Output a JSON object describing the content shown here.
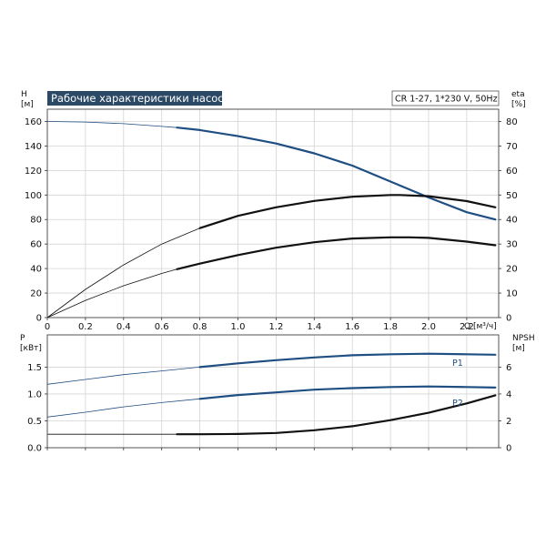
{
  "chart_data": [
    {
      "type": "line",
      "title": "Рабочие характеристики насоса",
      "subtitle": "CR 1-27, 1*230 V, 50Hz",
      "xlabel": "Q [м³/ч]",
      "ylabel": "H\n[м]",
      "y2label": "eta\n[%]",
      "xlim": [
        0,
        2.4
      ],
      "ylim": [
        0,
        170
      ],
      "y2lim": [
        0,
        85
      ],
      "grid": true,
      "x_ticks": [
        "0",
        "0.2",
        "0.4",
        "0.6",
        "0.8",
        "1.0",
        "1.2",
        "1.4",
        "1.6",
        "1.8",
        "2.0",
        "2.2"
      ],
      "y_ticks": [
        "0",
        "20",
        "40",
        "60",
        "80",
        "100",
        "120",
        "140",
        "160"
      ],
      "y2_ticks": [
        "0",
        "10",
        "20",
        "30",
        "40",
        "50",
        "60",
        "70",
        "80"
      ],
      "series": [
        {
          "color": "#1f4e82",
          "axis": "left",
          "x": [
            0,
            0.2,
            0.4,
            0.6,
            0.68,
            0.8,
            1.0,
            1.2,
            1.4,
            1.6,
            1.8,
            2.0,
            2.2,
            2.35
          ],
          "values": [
            160,
            159.5,
            158.2,
            156,
            155,
            153,
            148,
            142,
            134,
            124,
            111,
            98,
            86,
            80
          ]
        },
        {
          "color": "#111111",
          "axis": "right",
          "x": [
            0,
            0.2,
            0.4,
            0.6,
            0.8,
            1.0,
            1.2,
            1.4,
            1.6,
            1.8,
            1.85,
            2.0,
            2.2,
            2.35
          ],
          "values": [
            0,
            11.5,
            21.5,
            30,
            36.5,
            41.5,
            45,
            47.6,
            49.3,
            50,
            50,
            49.5,
            47.5,
            45
          ]
        },
        {
          "color": "#111111",
          "axis": "left",
          "x": [
            0,
            0.2,
            0.4,
            0.6,
            0.68,
            0.8,
            1.0,
            1.2,
            1.4,
            1.6,
            1.8,
            1.9,
            2.0,
            2.2,
            2.35
          ],
          "values": [
            0,
            14,
            26,
            36,
            39.5,
            44,
            51,
            57,
            61.5,
            64.5,
            65.5,
            65.5,
            65,
            62,
            59
          ]
        }
      ]
    },
    {
      "type": "line",
      "ylabel": "P\n[кВт]",
      "y2label": "NPSH\n[м]",
      "xlim": [
        0,
        2.4
      ],
      "ylim": [
        0,
        2.1
      ],
      "y2lim": [
        0,
        8.4
      ],
      "grid": true,
      "y_ticks": [
        "0.0",
        "0.5",
        "1.0",
        "1.5"
      ],
      "y2_ticks": [
        "0",
        "2",
        "4",
        "6"
      ],
      "series": [
        {
          "name": "P1",
          "color": "#1f4e82",
          "axis": "left",
          "x": [
            0,
            0.2,
            0.4,
            0.6,
            0.8,
            1.0,
            1.2,
            1.4,
            1.6,
            1.8,
            2.0,
            2.2,
            2.35
          ],
          "values": [
            1.18,
            1.27,
            1.36,
            1.43,
            1.5,
            1.57,
            1.63,
            1.68,
            1.72,
            1.74,
            1.75,
            1.74,
            1.73
          ]
        },
        {
          "name": "P2",
          "color": "#1f4e82",
          "axis": "left",
          "x": [
            0,
            0.2,
            0.4,
            0.6,
            0.8,
            1.0,
            1.2,
            1.4,
            1.6,
            1.8,
            2.0,
            2.2,
            2.35
          ],
          "values": [
            0.57,
            0.66,
            0.76,
            0.84,
            0.91,
            0.98,
            1.03,
            1.08,
            1.11,
            1.13,
            1.14,
            1.13,
            1.12
          ]
        },
        {
          "color": "#111111",
          "axis": "right",
          "x": [
            0,
            0.68,
            0.8,
            1.0,
            1.2,
            1.4,
            1.6,
            1.8,
            2.0,
            2.2,
            2.35
          ],
          "values": [
            1.0,
            1.0,
            1.0,
            1.02,
            1.1,
            1.3,
            1.6,
            2.05,
            2.6,
            3.3,
            3.9
          ]
        }
      ]
    }
  ]
}
